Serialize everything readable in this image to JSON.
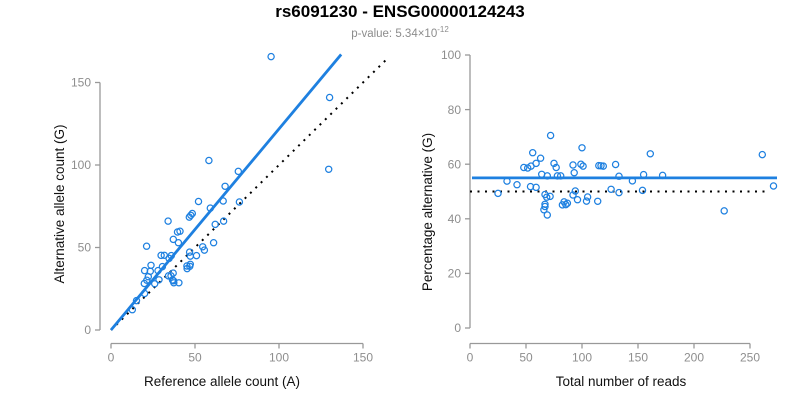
{
  "header": {
    "title": "rs6091230 - ENSG00000124243",
    "subtitle_base": "p-value: 5.34×10",
    "subtitle_exponent": "-12"
  },
  "colors": {
    "point_blue": "#1E80E0",
    "line_blue": "#1E80E0",
    "dotted_black": "#000000",
    "axis_gray": "#999999",
    "tick_text_gray": "#8E8E8E",
    "label_black": "#111111",
    "subtitle_gray": "#8C8C8C"
  },
  "chart_data": [
    {
      "id": "allele-counts",
      "type": "scatter",
      "xlabel": "Reference allele count (A)",
      "ylabel": "Alternative allele count (G)",
      "xticks": [
        0,
        50,
        100,
        150
      ],
      "yticks": [
        0,
        50,
        100,
        150
      ],
      "xlim": [
        0,
        165
      ],
      "ylim": [
        0,
        168
      ],
      "grid": false,
      "legend": "none",
      "points": [
        [
          21.2,
          50.8
        ],
        [
          20,
          36
        ],
        [
          23.8,
          39.2
        ],
        [
          23.4,
          35.6
        ],
        [
          22.2,
          32.3
        ],
        [
          19.8,
          28.2
        ],
        [
          21.3,
          30.2
        ],
        [
          28,
          36
        ],
        [
          30.6,
          38.4
        ],
        [
          29.8,
          45.2
        ],
        [
          31.7,
          45.3
        ],
        [
          34.6,
          43.4
        ],
        [
          35.9,
          45.1
        ],
        [
          37.1,
          54.9
        ],
        [
          40.1,
          52.9
        ],
        [
          34,
          66
        ],
        [
          39.6,
          59.4
        ],
        [
          41.1,
          59.9
        ],
        [
          46.6,
          68.4
        ],
        [
          47.5,
          69.5
        ],
        [
          48.4,
          70.6
        ],
        [
          52.1,
          77.9
        ],
        [
          59.1,
          73.9
        ],
        [
          66.8,
          78.2
        ],
        [
          58.3,
          102.7
        ],
        [
          67.9,
          87.1
        ],
        [
          75.8,
          96.1
        ],
        [
          95.3,
          165.7
        ],
        [
          130.1,
          140.9
        ],
        [
          15.2,
          17.8
        ],
        [
          20,
          22.1
        ],
        [
          12.7,
          12.3
        ],
        [
          26,
          28
        ],
        [
          28.6,
          30.4
        ],
        [
          34.2,
          32.8
        ],
        [
          35.7,
          32.8
        ],
        [
          37,
          34.5
        ],
        [
          36.6,
          30.3
        ],
        [
          45.2,
          38.8
        ],
        [
          47.2,
          39.8
        ],
        [
          46.8,
          47.2
        ],
        [
          50.9,
          45.1
        ],
        [
          54.6,
          50.4
        ],
        [
          61.1,
          52.9
        ],
        [
          62,
          64
        ],
        [
          67,
          66
        ],
        [
          76.4,
          77.6
        ],
        [
          37.2,
          29.8
        ],
        [
          37.4,
          28.6
        ],
        [
          40.4,
          28.6
        ],
        [
          45.3,
          37.2
        ],
        [
          46.9,
          38.6
        ],
        [
          55.6,
          48.4
        ],
        [
          129.6,
          97.4
        ],
        [
          47.2,
          44.8
        ]
      ],
      "fit_line": {
        "x1": 0,
        "y1": 0,
        "x2": 137,
        "y2": 167
      },
      "identity_line": {
        "x1": 0,
        "y1": 0,
        "x2": 165,
        "y2": 165
      }
    },
    {
      "id": "percentage-vs-depth",
      "type": "scatter",
      "xlabel": "Total number of reads",
      "ylabel": "Percentage alternative (G)",
      "xticks": [
        0,
        50,
        100,
        150,
        200,
        250
      ],
      "yticks": [
        0,
        20,
        40,
        60,
        80,
        100
      ],
      "xlim": [
        0,
        275
      ],
      "ylim": [
        0,
        100
      ],
      "grid": false,
      "legend": "none",
      "points": [
        [
          72,
          70.5
        ],
        [
          56,
          64.2
        ],
        [
          63,
          62.2
        ],
        [
          59,
          60.3
        ],
        [
          54.5,
          59.3
        ],
        [
          48,
          58.8
        ],
        [
          51.5,
          58.6
        ],
        [
          64,
          56.3
        ],
        [
          69,
          55.7
        ],
        [
          75,
          60.3
        ],
        [
          77,
          58.8
        ],
        [
          78,
          55.7
        ],
        [
          81,
          55.7
        ],
        [
          92,
          59.7
        ],
        [
          93,
          56.9
        ],
        [
          100,
          66
        ],
        [
          99,
          60
        ],
        [
          101,
          59.3
        ],
        [
          115,
          59.5
        ],
        [
          117,
          59.4
        ],
        [
          119,
          59.3
        ],
        [
          130,
          59.9
        ],
        [
          133,
          55.6
        ],
        [
          145,
          53.9
        ],
        [
          161,
          63.8
        ],
        [
          155,
          56.2
        ],
        [
          172,
          55.9
        ],
        [
          261,
          63.5
        ],
        [
          271,
          52
        ],
        [
          33,
          53.8
        ],
        [
          42,
          52.5
        ],
        [
          25,
          49.3
        ],
        [
          54,
          51.8
        ],
        [
          59,
          51.5
        ],
        [
          67,
          48.9
        ],
        [
          68.5,
          47.9
        ],
        [
          71.5,
          48.2
        ],
        [
          67,
          45.3
        ],
        [
          84,
          46.2
        ],
        [
          87,
          45.7
        ],
        [
          94,
          50.2
        ],
        [
          96,
          47
        ],
        [
          105,
          48
        ],
        [
          114,
          46.4
        ],
        [
          126,
          50.8
        ],
        [
          133,
          49.6
        ],
        [
          154,
          50.4
        ],
        [
          67,
          44.5
        ],
        [
          66,
          43.3
        ],
        [
          69,
          41.4
        ],
        [
          82.5,
          45.1
        ],
        [
          85.5,
          45.2
        ],
        [
          104,
          46.5
        ],
        [
          227,
          42.9
        ],
        [
          92,
          48.7
        ]
      ],
      "mean_line_y": 55,
      "null_line_y": 50
    }
  ]
}
